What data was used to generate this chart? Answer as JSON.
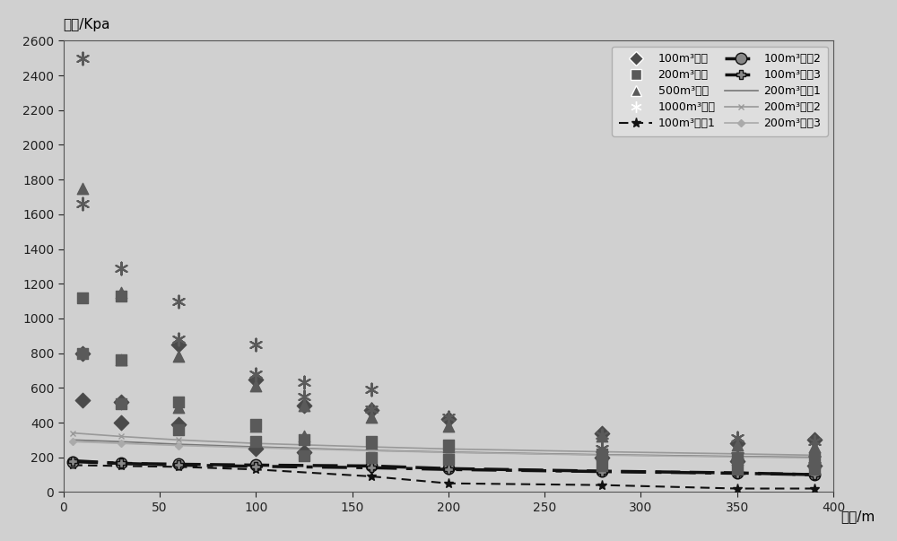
{
  "ylabel": "超压/Kpa",
  "xlabel": "距离/m",
  "xlim": [
    0,
    400
  ],
  "ylim": [
    0,
    2600
  ],
  "yticks": [
    0,
    200,
    400,
    600,
    800,
    1000,
    1200,
    1400,
    1600,
    1800,
    2000,
    2200,
    2400,
    2600
  ],
  "xticks": [
    0,
    50,
    100,
    150,
    200,
    250,
    300,
    350,
    400
  ],
  "scatter_100_x": [
    10,
    10,
    30,
    30,
    60,
    60,
    100,
    100,
    125,
    125,
    160,
    200,
    280,
    280,
    350,
    350,
    390,
    390
  ],
  "scatter_100_y": [
    800,
    530,
    520,
    400,
    850,
    390,
    650,
    250,
    500,
    230,
    470,
    420,
    340,
    200,
    280,
    180,
    300,
    150
  ],
  "scatter_200_x": [
    10,
    10,
    30,
    30,
    30,
    60,
    60,
    100,
    100,
    125,
    125,
    160,
    160,
    200,
    200,
    280,
    280,
    350,
    350,
    390,
    390
  ],
  "scatter_200_y": [
    1120,
    800,
    1130,
    760,
    510,
    520,
    360,
    390,
    290,
    300,
    210,
    290,
    200,
    270,
    190,
    220,
    150,
    200,
    130,
    200,
    130
  ],
  "scatter_500_x": [
    10,
    30,
    30,
    60,
    60,
    100,
    100,
    125,
    125,
    160,
    160,
    200,
    200,
    280,
    280,
    350,
    350,
    390,
    390
  ],
  "scatter_500_y": [
    1750,
    1150,
    760,
    780,
    490,
    610,
    380,
    500,
    320,
    430,
    280,
    380,
    260,
    320,
    215,
    270,
    190,
    260,
    170
  ],
  "scatter_1000_x": [
    10,
    10,
    30,
    60,
    60,
    100,
    100,
    125,
    125,
    160,
    160,
    200,
    280,
    280,
    350,
    350,
    390,
    390
  ],
  "scatter_1000_y": [
    2500,
    1660,
    1290,
    1100,
    880,
    850,
    680,
    630,
    550,
    590,
    480,
    430,
    330,
    250,
    310,
    210,
    290,
    190
  ],
  "line_100e1_x": [
    5,
    30,
    60,
    100,
    160,
    200,
    280,
    350,
    390
  ],
  "line_100e1_y": [
    155,
    150,
    145,
    130,
    90,
    50,
    40,
    20,
    20
  ],
  "line_100e2_x": [
    5,
    30,
    60,
    100,
    160,
    200,
    280,
    350,
    390
  ],
  "line_100e2_y": [
    175,
    165,
    160,
    155,
    150,
    135,
    120,
    110,
    100
  ],
  "line_100e3_x": [
    5,
    30,
    60,
    100,
    160,
    200,
    280,
    350,
    390
  ],
  "line_100e3_y": [
    180,
    165,
    155,
    148,
    140,
    130,
    118,
    108,
    100
  ],
  "line_200e1_x": [
    5,
    30,
    60,
    100,
    160,
    200,
    280,
    350,
    390
  ],
  "line_200e1_y": [
    300,
    290,
    275,
    260,
    240,
    230,
    215,
    205,
    200
  ],
  "line_200e2_x": [
    5,
    30,
    60,
    100,
    160,
    200,
    280,
    350,
    390
  ],
  "line_200e2_y": [
    340,
    320,
    300,
    280,
    260,
    248,
    232,
    220,
    212
  ],
  "line_200e3_x": [
    5,
    30,
    60,
    100,
    160,
    200,
    280,
    350,
    390
  ],
  "line_200e3_y": [
    290,
    280,
    268,
    255,
    238,
    228,
    213,
    202,
    196
  ],
  "bg_color": "#d0d0d0",
  "legend_bg": "#e0e0e0",
  "legend_labels": [
    "100m³预测",
    "200m³预测",
    "500m³预测",
    "1000m³预测",
    "100m³实陣1",
    "100m³实陣2",
    "100m³实陣3",
    "200m³实陣1",
    "200m³实陣2",
    "200m³实陣3"
  ]
}
